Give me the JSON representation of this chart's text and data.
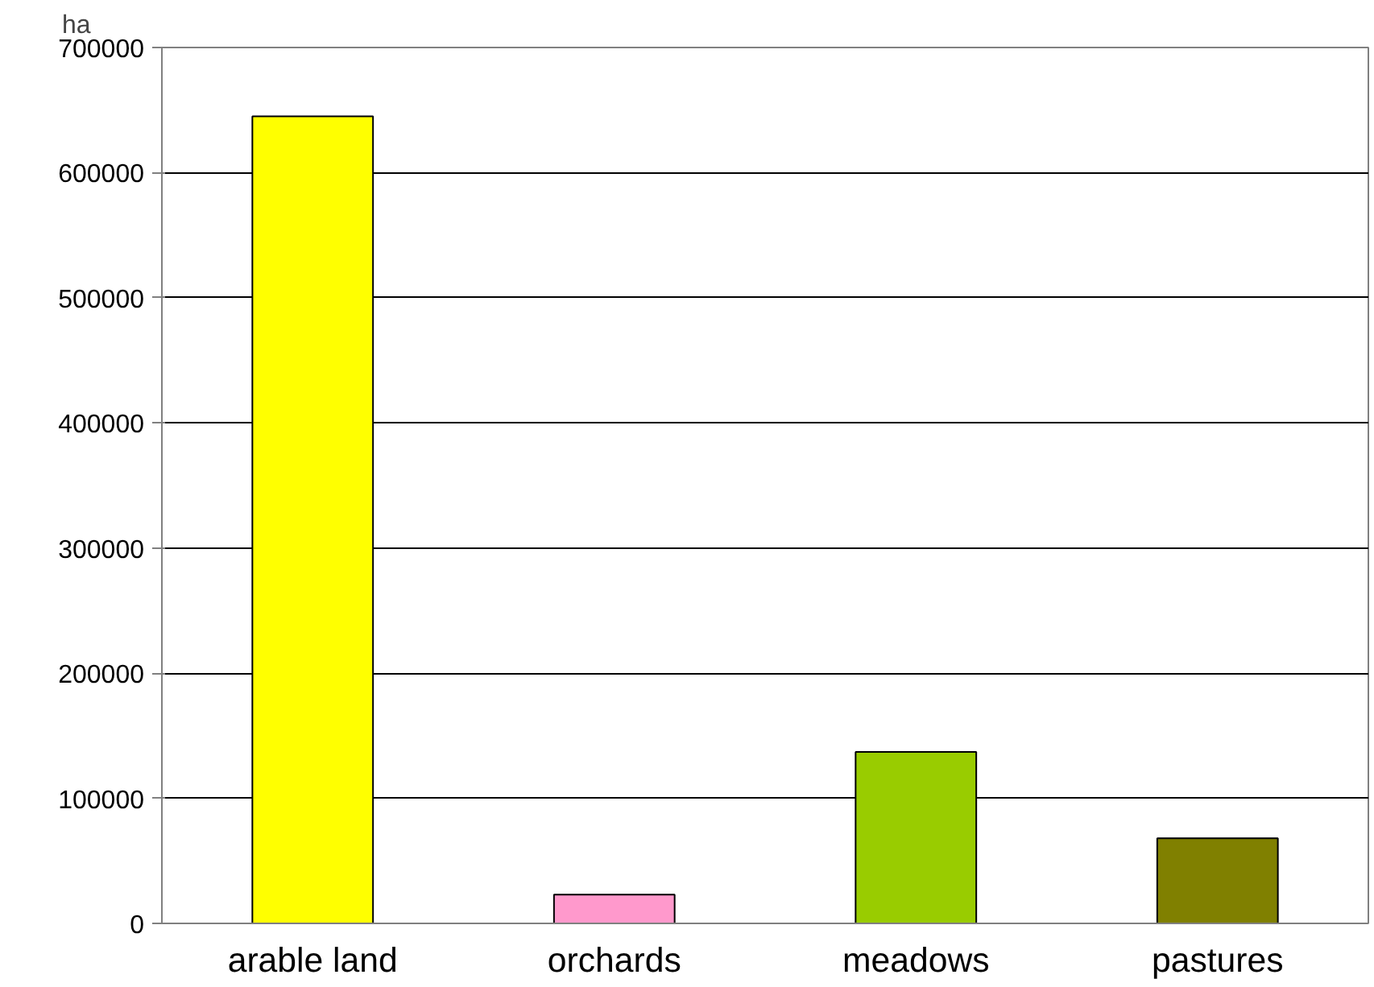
{
  "chart_data": {
    "type": "bar",
    "ylabel": "ha",
    "categories": [
      "arable land",
      "orchards",
      "meadows",
      "pastures"
    ],
    "values": [
      645000,
      23000,
      137000,
      68000
    ],
    "colors": [
      "#ffff00",
      "#ff99cc",
      "#99cc00",
      "#808000"
    ],
    "ylim": [
      0,
      700000
    ],
    "yticks": [
      0,
      100000,
      200000,
      300000,
      400000,
      500000,
      600000,
      700000
    ],
    "grid": "y"
  }
}
